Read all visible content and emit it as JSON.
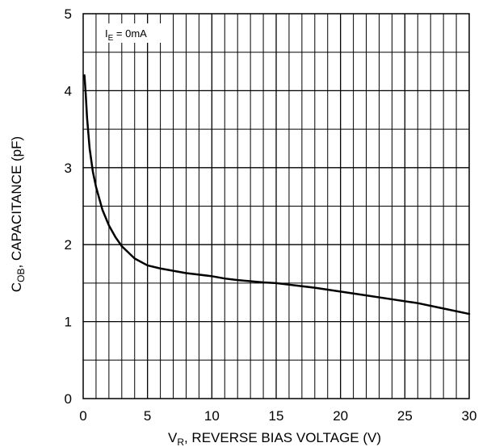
{
  "chart_data": {
    "type": "line",
    "title": "",
    "xlabel": {
      "main": "V",
      "sub": "R",
      "rest": ", REVERSE BIAS VOLTAGE (V)"
    },
    "ylabel": {
      "main": "C",
      "sub": "OB",
      "rest": ", CAPACITANCE (pF)"
    },
    "annotation": {
      "main": "I",
      "sub": "E",
      "rest": " = 0mA"
    },
    "xlim": [
      0,
      30
    ],
    "ylim": [
      0,
      5
    ],
    "x_ticks": [
      0,
      5,
      10,
      15,
      20,
      25,
      30
    ],
    "y_ticks": [
      0,
      1,
      2,
      3,
      4,
      5
    ],
    "grid": true,
    "series": [
      {
        "x": [
          0.1,
          0.2,
          0.3,
          0.5,
          0.75,
          1,
          1.5,
          2,
          2.5,
          3,
          3.5,
          4,
          5,
          6,
          7,
          8,
          9,
          10,
          11,
          12,
          14,
          15,
          16,
          18,
          20,
          22,
          24,
          26,
          28,
          30
        ],
        "values": [
          4.2,
          3.95,
          3.65,
          3.25,
          2.95,
          2.75,
          2.45,
          2.25,
          2.1,
          1.98,
          1.9,
          1.82,
          1.73,
          1.69,
          1.66,
          1.63,
          1.61,
          1.59,
          1.56,
          1.54,
          1.51,
          1.5,
          1.48,
          1.44,
          1.39,
          1.34,
          1.29,
          1.24,
          1.17,
          1.1
        ]
      }
    ]
  }
}
